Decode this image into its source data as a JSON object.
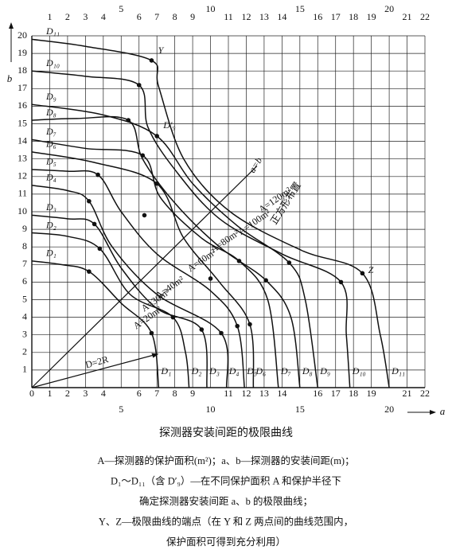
{
  "chart_data": {
    "type": "line",
    "title": "探测器安装间距的极限曲线",
    "x_label": "a",
    "y_label": "b",
    "xlim": [
      0,
      22
    ],
    "ylim": [
      0,
      20
    ],
    "xticks": [
      0,
      1,
      2,
      3,
      4,
      5,
      6,
      7,
      8,
      9,
      10,
      11,
      12,
      13,
      14,
      15,
      16,
      17,
      18,
      19,
      20,
      21,
      22
    ],
    "yticks": [
      0,
      1,
      2,
      3,
      4,
      5,
      6,
      7,
      8,
      9,
      10,
      11,
      12,
      13,
      14,
      15,
      16,
      17,
      18,
      19,
      20
    ],
    "grid": true,
    "color": "#111111",
    "series": [
      {
        "name": "D₁",
        "x": [
          0,
          1.6,
          3.2,
          5,
          6.7,
          7.1
        ],
        "values": [
          7.2,
          7,
          6.6,
          4.8,
          3.1,
          0
        ]
      },
      {
        "name": "D₂",
        "x": [
          0,
          2,
          3.8,
          5.5,
          7.9,
          8.6,
          8.8
        ],
        "values": [
          8.8,
          8.6,
          7.9,
          5.3,
          4,
          2,
          0
        ]
      },
      {
        "name": "D₃",
        "x": [
          0,
          2,
          3.5,
          5,
          7,
          9.5,
          9.8
        ],
        "values": [
          9.8,
          9.6,
          9.3,
          6.8,
          4.5,
          3.3,
          0
        ]
      },
      {
        "name": "D₄",
        "x": [
          0,
          2,
          3.2,
          4.5,
          7,
          10.6,
          10.9
        ],
        "values": [
          11.5,
          11.2,
          10.6,
          8,
          5.3,
          3.1,
          0
        ]
      },
      {
        "name": "D₅",
        "x": [
          0,
          2,
          3.7,
          5,
          7,
          10,
          11.5,
          11.9
        ],
        "values": [
          12.4,
          12.3,
          12.1,
          10,
          7.6,
          5.5,
          3.5,
          0
        ]
      },
      {
        "name": "D₆",
        "x": [
          0,
          3.5,
          7,
          8.5,
          10.5,
          12.2,
          12.4
        ],
        "values": [
          13.4,
          12.8,
          11.6,
          8.5,
          6,
          3.6,
          0
        ]
      },
      {
        "name": "D₇",
        "x": [
          0,
          3,
          6.2,
          7.2,
          9.5,
          11.6,
          13.2,
          13.8
        ],
        "values": [
          14.1,
          13.6,
          13.2,
          10.8,
          8.5,
          7.2,
          5,
          0
        ]
      },
      {
        "name": "D₈",
        "x": [
          0,
          2.5,
          5.4,
          6.2,
          8,
          10.5,
          13.1,
          14.5,
          15
        ],
        "values": [
          15.2,
          15.3,
          15.2,
          13,
          10.5,
          8,
          6.1,
          4,
          0
        ]
      },
      {
        "name": "D₉",
        "x": [
          0,
          4,
          7,
          9,
          11.5,
          14.4,
          15.3,
          16
        ],
        "values": [
          16.1,
          15.5,
          14.3,
          11.6,
          9.2,
          7.1,
          5,
          0
        ]
      },
      {
        "name": "D₁₀",
        "x": [
          0,
          3,
          6,
          6.5,
          8,
          10.5,
          14,
          17.3,
          17.6,
          17.8
        ],
        "values": [
          18,
          17.7,
          17.2,
          14.8,
          12.4,
          9.6,
          7.6,
          6,
          3,
          0
        ]
      },
      {
        "name": "D₁₁",
        "x": [
          0,
          3,
          6.7,
          7.1,
          8.5,
          11.1,
          15.1,
          18.5,
          19.5,
          20
        ],
        "values": [
          19.8,
          19.4,
          18.6,
          17.1,
          13,
          10,
          7.8,
          6.5,
          3,
          0
        ]
      }
    ],
    "dots": {
      "x": [
        3.2,
        6.7,
        3.8,
        7.9,
        3.5,
        9.5,
        3.2,
        10.6,
        3.7,
        11.5,
        7,
        12.2,
        6.2,
        11.6,
        5.4,
        13.1,
        7,
        14.4,
        6,
        17.3,
        6.7,
        18.5,
        6.3,
        10
      ],
      "values": [
        6.6,
        3.1,
        7.9,
        4,
        9.3,
        3.3,
        10.6,
        3.1,
        12.1,
        3.5,
        11.6,
        3.6,
        13.2,
        7.2,
        15.2,
        6.1,
        14.3,
        7.1,
        17.2,
        6,
        18.6,
        6.5,
        9.8,
        6.2
      ]
    },
    "annotations": [
      "Y",
      "Z",
      "D′₉",
      "a=b",
      "正方形布置",
      "A=120m²",
      "A=100m²",
      "A=80m²",
      "A=60m²",
      "A=40m²",
      "A=30m²",
      "A=20m²",
      "D=2R"
    ],
    "caption": [
      "A—探测器的保护面积(m²)；a、b—探测器的安装间距(m)；",
      "D₁～D₁₁（含 D′₉）—在不同保护面积 A 和保护半径下",
      "确定探测器安装间距 a、b 的极限曲线；",
      "Y、Z—极限曲线的端点（在 Y 和 Z 两点间的曲线范围内，",
      "保护面积可得到充分利用）"
    ]
  }
}
